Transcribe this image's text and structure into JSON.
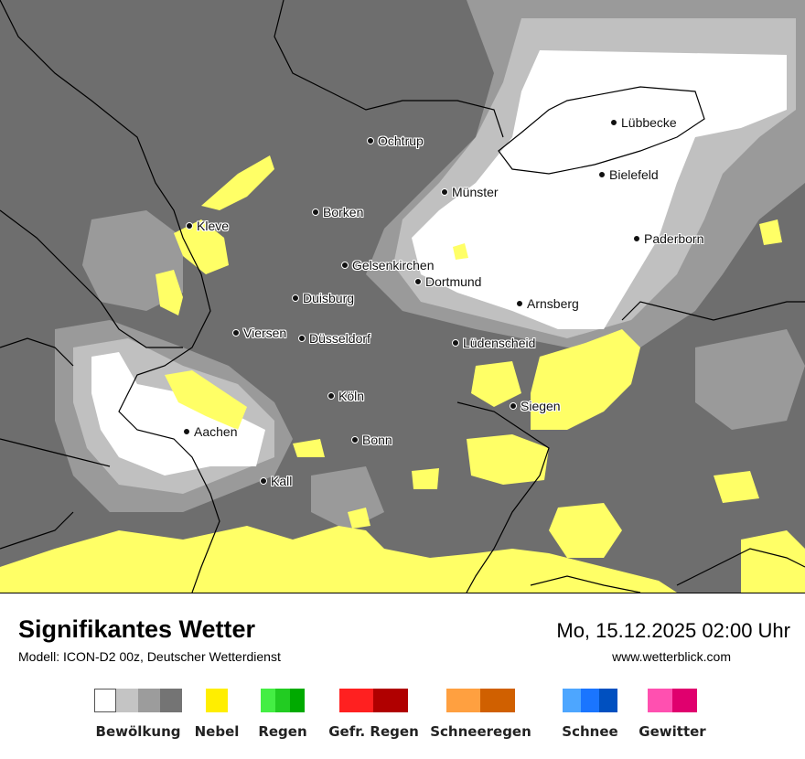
{
  "map": {
    "cities": [
      {
        "name": "Lübbecke",
        "id": "luebbecke"
      },
      {
        "name": "Ochtrup",
        "id": "ochtrup"
      },
      {
        "name": "Bielefeld",
        "id": "bielefeld"
      },
      {
        "name": "Münster",
        "id": "muenster"
      },
      {
        "name": "Borken",
        "id": "borken"
      },
      {
        "name": "Kleve",
        "id": "kleve"
      },
      {
        "name": "Paderborn",
        "id": "paderborn"
      },
      {
        "name": "Gelsenkirchen",
        "id": "gelsenkirchen"
      },
      {
        "name": "Dortmund",
        "id": "dortmund"
      },
      {
        "name": "Duisburg",
        "id": "duisburg"
      },
      {
        "name": "Arnsberg",
        "id": "arnsberg"
      },
      {
        "name": "Viersen",
        "id": "viersen"
      },
      {
        "name": "Düsseldorf",
        "id": "duesseldorf"
      },
      {
        "name": "Lüdenscheid",
        "id": "luedenscheid"
      },
      {
        "name": "Köln",
        "id": "koeln"
      },
      {
        "name": "Siegen",
        "id": "siegen"
      },
      {
        "name": "Aachen",
        "id": "aachen"
      },
      {
        "name": "Bonn",
        "id": "bonn"
      },
      {
        "name": "Kall",
        "id": "kall"
      }
    ],
    "colors": {
      "cloud_dark": "#6e6e6e",
      "cloud_mid": "#9a9a9a",
      "cloud_light": "#c0c0c0",
      "clear": "#ffffff",
      "fog": "#ffff66"
    }
  },
  "footer": {
    "title": "Signifikantes Wetter",
    "model": "Modell: ICON-D2 00z, Deutscher Wetterdienst",
    "datetime": "Mo, 15.12.2025 02:00 Uhr",
    "website": "www.wetterblick.com"
  },
  "legend": [
    {
      "label": "Bewölkung",
      "colors": [
        "#ffffff",
        "#c4c4c4",
        "#9c9c9c",
        "#747474"
      ]
    },
    {
      "label": "Nebel",
      "colors": [
        "#ffee00"
      ]
    },
    {
      "label": "Regen",
      "colors": [
        "#44ee44",
        "#22cc22",
        "#00aa00"
      ]
    },
    {
      "label": "Gefr. Regen",
      "colors": [
        "#ff2020",
        "#b00000"
      ]
    },
    {
      "label": "Schneeregen",
      "colors": [
        "#ffa040",
        "#d06000"
      ]
    },
    {
      "label": "Schnee",
      "colors": [
        "#4da6ff",
        "#1a75ff",
        "#0050c0"
      ]
    },
    {
      "label": "Gewitter",
      "colors": [
        "#ff50b0",
        "#e0006e"
      ]
    }
  ]
}
